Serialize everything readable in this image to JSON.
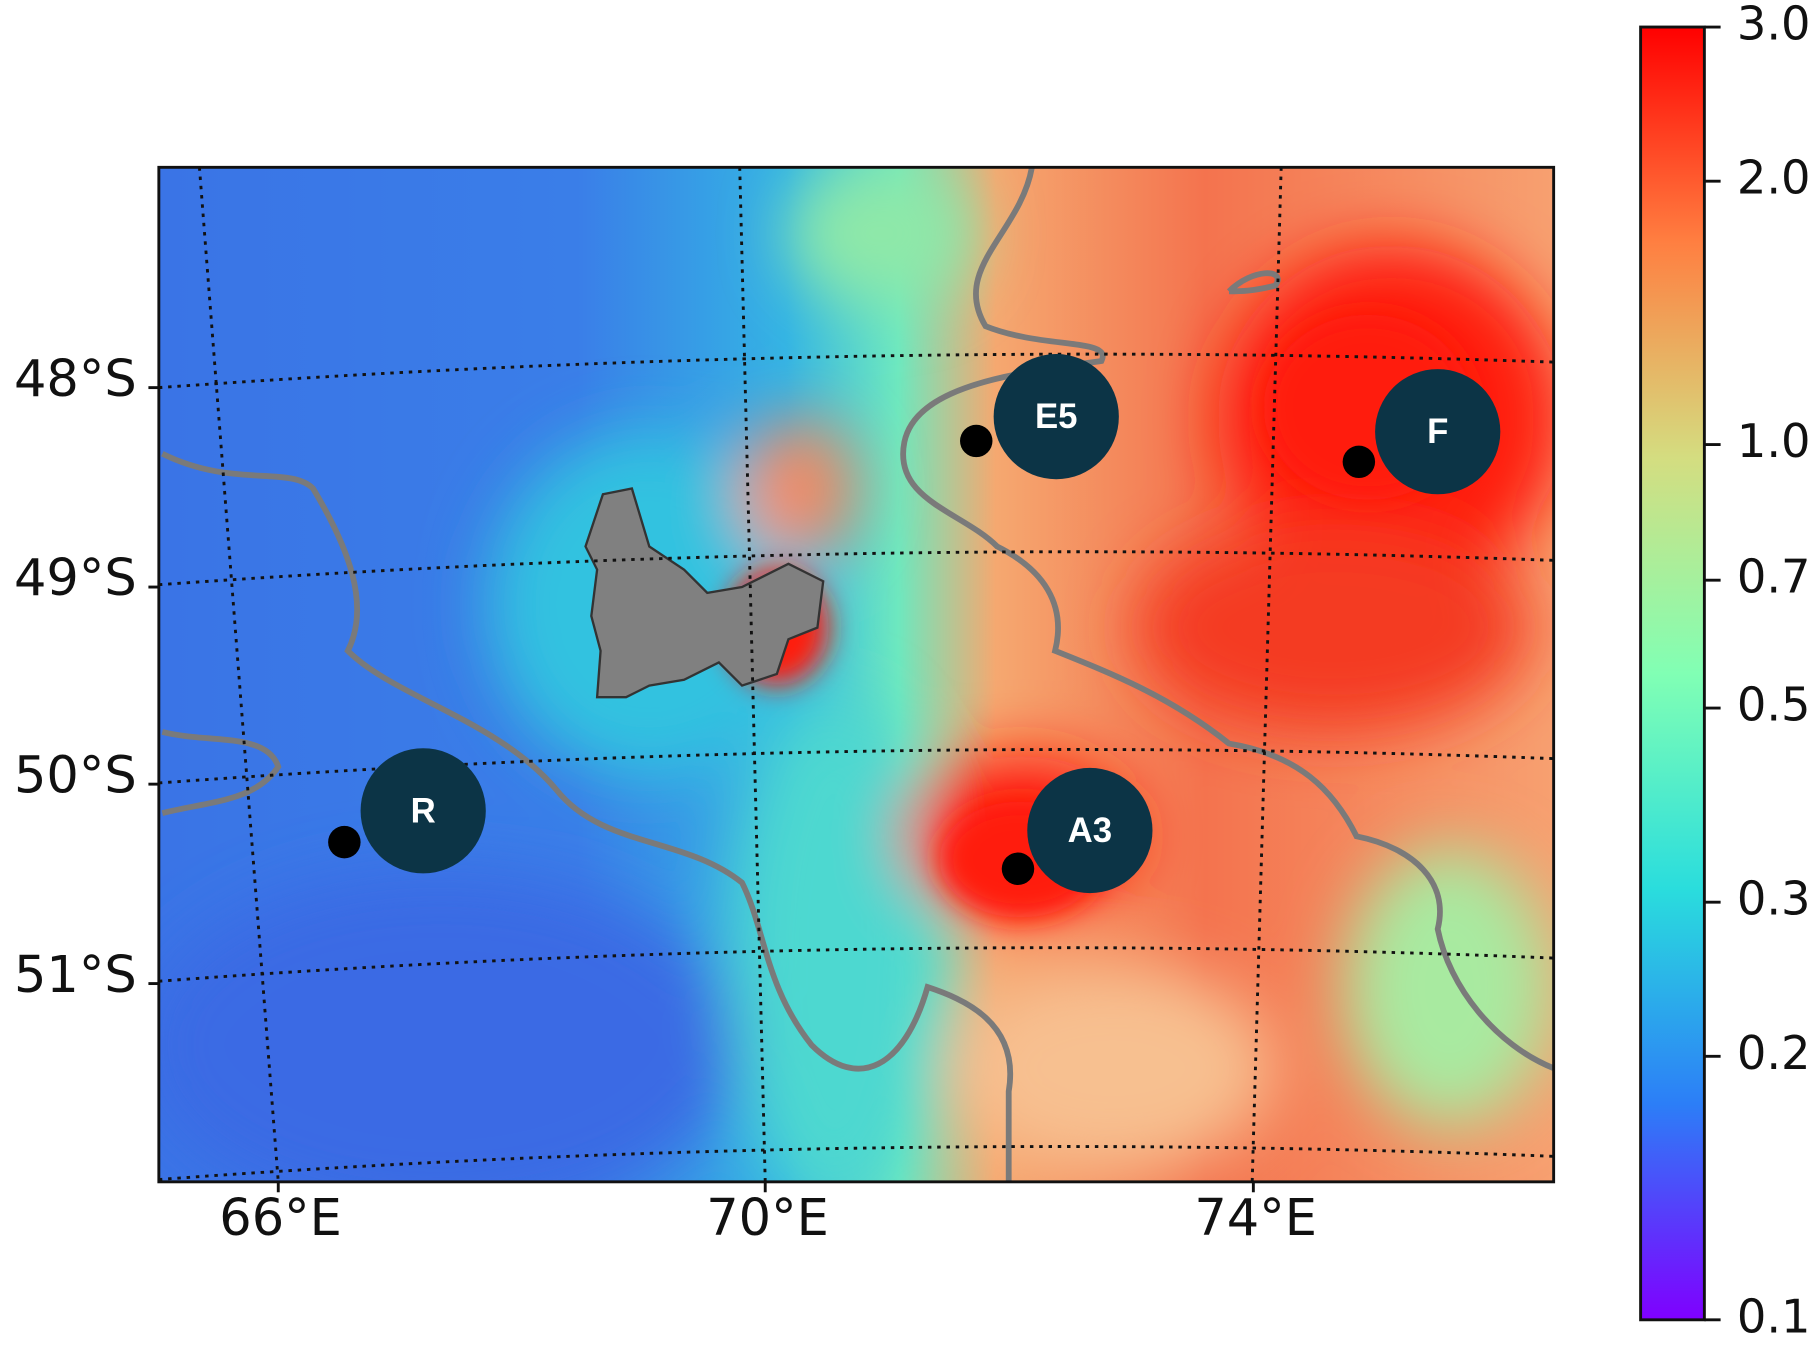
{
  "map": {
    "lat_labels": [
      "48°S",
      "49°S",
      "50°S",
      "51°S"
    ],
    "lon_labels": [
      "66°E",
      "70°E",
      "74°E"
    ],
    "stations": [
      {
        "label": "R"
      },
      {
        "label": "E5"
      },
      {
        "label": "F"
      },
      {
        "label": "A3"
      }
    ]
  },
  "colorbar": {
    "scale": "log",
    "lim": [
      0.1,
      3.0
    ],
    "ticks": [
      {
        "value": 3,
        "label": "3.0"
      },
      {
        "value": 2,
        "label": "2.0"
      },
      {
        "value": 1,
        "label": "1.0"
      },
      0.7,
      0.5,
      0.3,
      0.2,
      0.1
    ],
    "colors": [
      "#7f00ff",
      "#2c7ef7",
      "#2adddd",
      "#81ffb4",
      "#d4dd80",
      "#ff7f41",
      "#ff0000"
    ]
  }
}
